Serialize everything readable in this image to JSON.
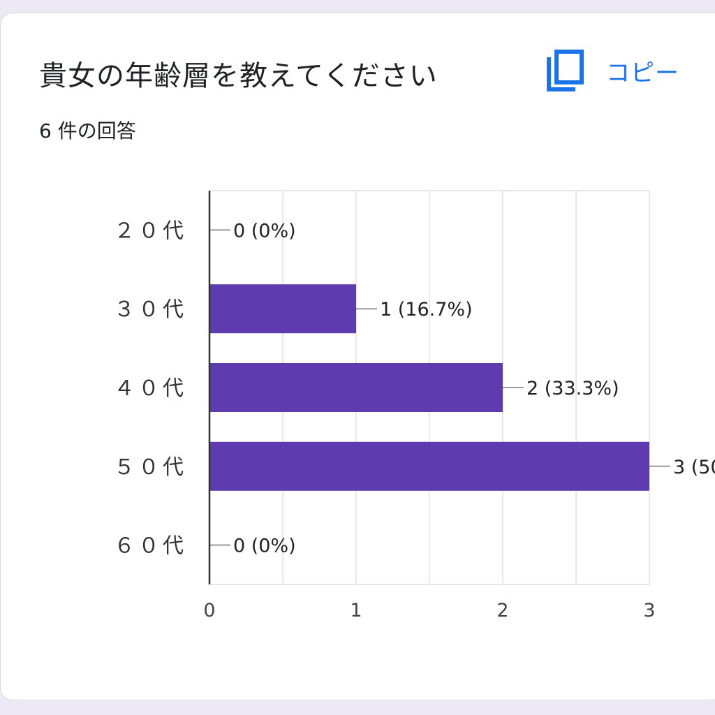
{
  "question": {
    "title": "貴女の年齢層を教えてください",
    "response_count": "6 件の回答"
  },
  "toolbar": {
    "copy_label": "コピー",
    "copy_icon": "copy-icon"
  },
  "colors": {
    "bar": "#5e3baf",
    "accent": "#1a73e8"
  },
  "chart_data": {
    "type": "bar",
    "orientation": "horizontal",
    "categories": [
      "２０代",
      "３０代",
      "４０代",
      "５０代",
      "６０代"
    ],
    "values": [
      0,
      1,
      2,
      3,
      0
    ],
    "data_labels": [
      "0 (0%)",
      "1 (16.7%)",
      "2 (33.3%)",
      "3 (50",
      "0 (0%)"
    ],
    "xlim": [
      0,
      3
    ],
    "xticks": [
      0,
      1,
      2,
      3
    ],
    "grid": true
  }
}
